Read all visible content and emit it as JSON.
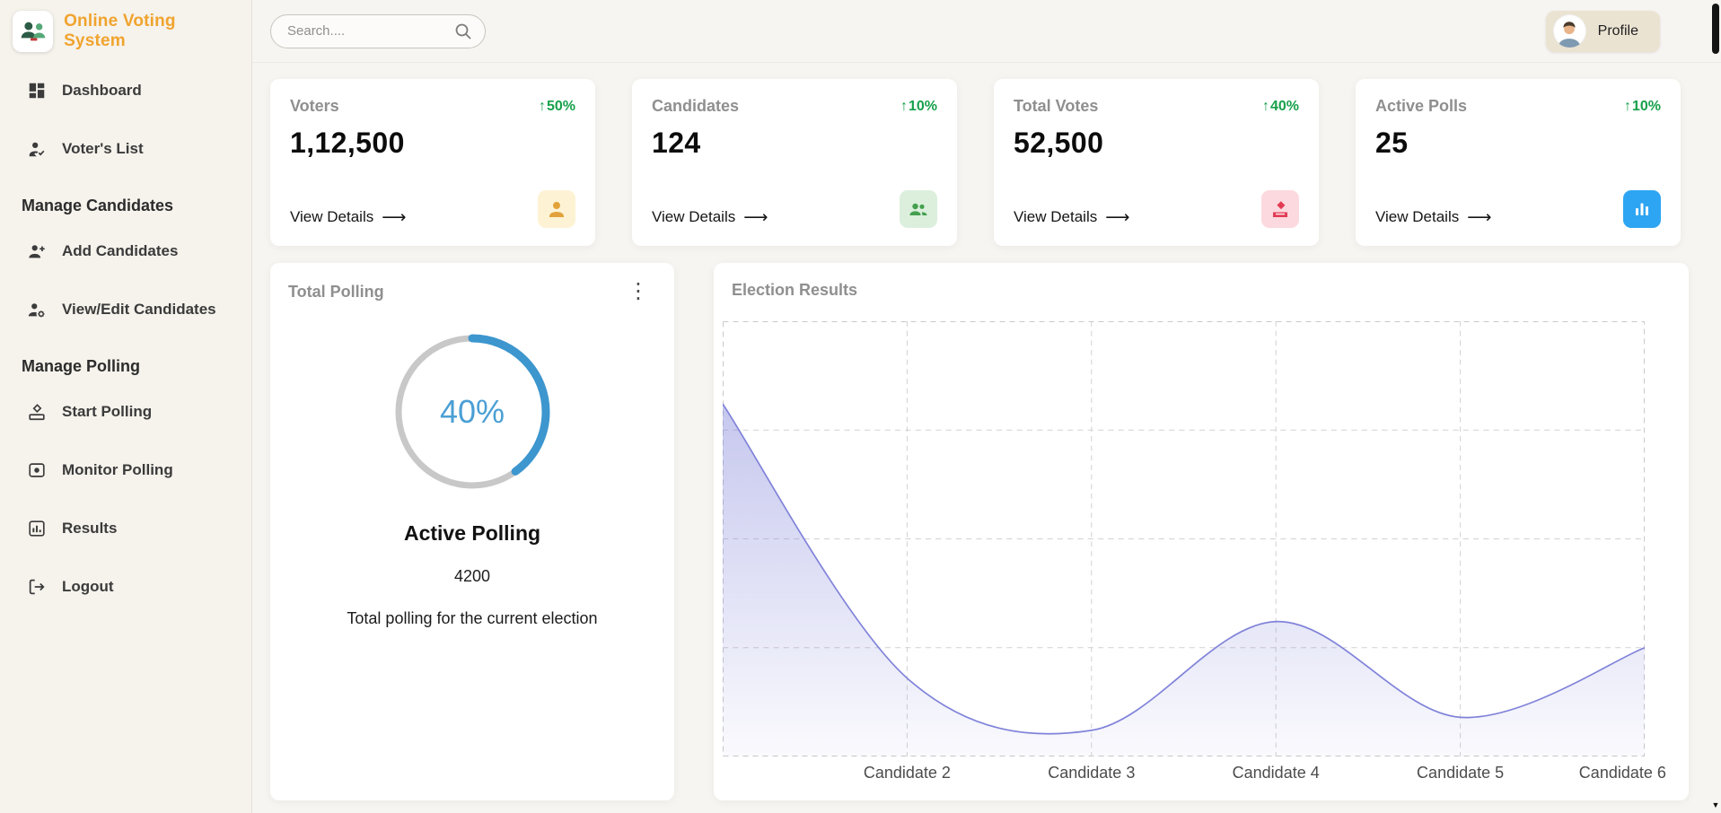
{
  "app": {
    "title": "Online Voting System"
  },
  "topbar": {
    "search": {
      "placeholder": "Search...."
    },
    "profile": {
      "label": "Profile"
    }
  },
  "sidebar": {
    "items": [
      {
        "label": "Dashboard"
      },
      {
        "label": "Voter's List"
      },
      {
        "label": "Add Candidates"
      },
      {
        "label": "View/Edit Candidates"
      },
      {
        "label": "Start Polling"
      },
      {
        "label": "Monitor Polling"
      },
      {
        "label": "Results"
      },
      {
        "label": "Logout"
      }
    ],
    "sections": [
      {
        "label": "Manage Candidates"
      },
      {
        "label": "Manage Polling"
      }
    ]
  },
  "icons": {
    "arrow_right": "⟶",
    "up_arrow": "↑",
    "kebab": "⋮",
    "scroll_down": "▼"
  },
  "colors": {
    "brand_orange": "#f0a42e",
    "positive_green": "#17a04b",
    "donut_blue": "#3d96ce",
    "chart_purple": "#8083d9"
  },
  "stats": [
    {
      "title": "Voters",
      "change": "50%",
      "value": "1,12,500",
      "link": "View Details",
      "icon": "person-icon",
      "icon_bg": "#fdf3d4",
      "icon_color": "#e2a23b"
    },
    {
      "title": "Candidates",
      "change": "10%",
      "value": "124",
      "link": "View Details",
      "icon": "people-icon",
      "icon_bg": "#dcefdd",
      "icon_color": "#44a04e"
    },
    {
      "title": "Total Votes",
      "change": "40%",
      "value": "52,500",
      "link": "View Details",
      "icon": "ballot-icon",
      "icon_bg": "#fcd9de",
      "icon_color": "#e23c55"
    },
    {
      "title": "Active Polls",
      "change": "10%",
      "value": "25",
      "link": "View Details",
      "icon": "bar-chart-icon",
      "icon_bg": "#2ea5f2",
      "icon_color": "#ffffff"
    }
  ],
  "chart_data": [
    {
      "type": "donut",
      "title": "Total Polling",
      "percent": 40,
      "center_label": "40%",
      "label": "Active Polling",
      "value": "4200",
      "description": "Total polling for the current election",
      "arc_color": "#3d96ce",
      "track_color": "#c8c8c8"
    },
    {
      "type": "area",
      "title": "Election Results",
      "categories": [
        "",
        "Candidate 2",
        "Candidate 3",
        "Candidate 4",
        "Candidate 5",
        "Candidate 6"
      ],
      "values": [
        81,
        18,
        6,
        31,
        9,
        25
      ],
      "ylim": [
        0,
        100
      ],
      "grid": "dashed",
      "legend": "none",
      "line_color": "#8083d9",
      "fill_color": "rgba(128,131,222,0.35)"
    }
  ]
}
